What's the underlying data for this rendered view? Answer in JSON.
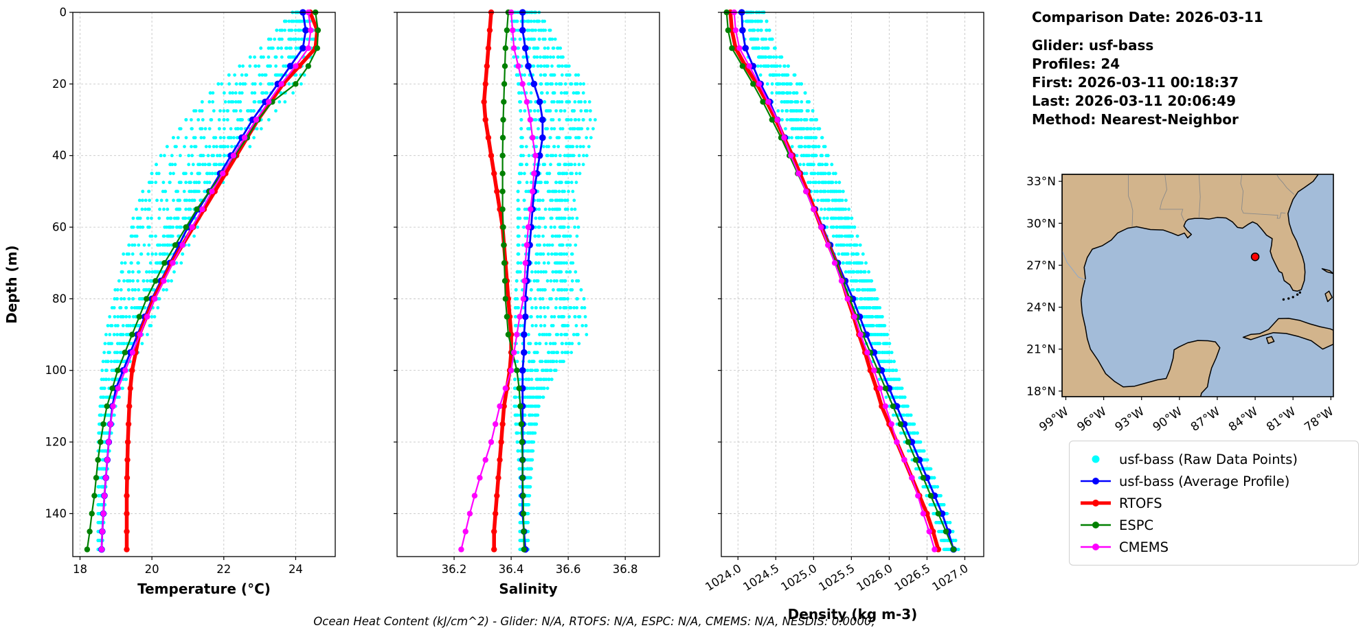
{
  "caption": "Ocean Heat Content (kJ/cm^2) - Glider: N/A,  RTOFS: N/A,  ESPC: N/A,  CMEMS: N/A,  NESDIS: 0.0000,",
  "info_panel": {
    "title": "Comparison Date: 2026-03-11",
    "lines": [
      "Glider: usf-bass",
      "Profiles: 24",
      "First: 2026-03-11 00:18:37",
      "Last: 2026-03-11 20:06:49",
      "Method: Nearest-Neighbor"
    ]
  },
  "legend": {
    "items": [
      {
        "label": "usf-bass (Raw Data Points)",
        "color": "#00FFFF",
        "style": "dot"
      },
      {
        "label": "usf-bass (Average Profile)",
        "color": "#0000FF",
        "style": "line-dot"
      },
      {
        "label": "RTOFS",
        "color": "#FF0000",
        "style": "thick-line-dot"
      },
      {
        "label": "ESPC",
        "color": "#008000",
        "style": "line-dot"
      },
      {
        "label": "CMEMS",
        "color": "#FF00FF",
        "style": "line-dot"
      }
    ]
  },
  "chart_data": [
    {
      "id": "temperature",
      "type": "scatter",
      "xlabel": "Temperature (°C)",
      "ylabel": "Depth (m)",
      "xlim": [
        17.8,
        25.1
      ],
      "xticks": [
        18,
        20,
        22,
        24
      ],
      "xtick_labels": [
        "18",
        "20",
        "22",
        "24"
      ],
      "rotate_xticks": false,
      "ylim": [
        0,
        152
      ],
      "yticks": [
        0,
        20,
        40,
        60,
        80,
        100,
        120,
        140
      ],
      "depths": [
        0,
        5,
        10,
        15,
        20,
        25,
        30,
        35,
        40,
        45,
        50,
        55,
        60,
        65,
        70,
        75,
        80,
        85,
        90,
        95,
        100,
        105,
        110,
        115,
        120,
        125,
        130,
        135,
        140,
        145,
        150
      ],
      "series": [
        {
          "key": "avg",
          "name": "usf-bass (Average Profile)",
          "color": "#0000FF",
          "width": 2.8,
          "marker": 4.8,
          "values": [
            24.2,
            24.28,
            24.2,
            23.85,
            23.5,
            23.15,
            22.8,
            22.5,
            22.2,
            21.9,
            21.6,
            21.3,
            21.0,
            20.75,
            20.5,
            20.25,
            20.0,
            19.8,
            19.6,
            19.4,
            19.2,
            19.0,
            18.9,
            18.85,
            18.8,
            18.76,
            18.72,
            18.68,
            18.65,
            18.62,
            18.6
          ]
        },
        {
          "key": "rtofs",
          "name": "RTOFS",
          "color": "#FF0000",
          "width": 5.5,
          "marker": 4.2,
          "values": [
            24.4,
            24.6,
            24.55,
            24.1,
            23.65,
            23.3,
            22.95,
            22.65,
            22.35,
            22.05,
            21.75,
            21.45,
            21.15,
            20.85,
            20.55,
            20.3,
            20.05,
            19.85,
            19.65,
            19.55,
            19.45,
            19.4,
            19.37,
            19.35,
            19.33,
            19.32,
            19.31,
            19.3,
            19.3,
            19.3,
            19.3
          ]
        },
        {
          "key": "espc",
          "name": "ESPC",
          "color": "#008000",
          "width": 2.2,
          "marker": 4.2,
          "values": [
            24.55,
            24.62,
            24.6,
            24.35,
            24.0,
            23.35,
            22.95,
            22.65,
            22.3,
            21.95,
            21.6,
            21.25,
            20.95,
            20.65,
            20.35,
            20.1,
            19.85,
            19.65,
            19.45,
            19.25,
            19.05,
            18.9,
            18.75,
            18.65,
            18.57,
            18.5,
            18.45,
            18.4,
            18.33,
            18.27,
            18.2
          ]
        },
        {
          "key": "cmems",
          "name": "CMEMS",
          "color": "#FF00FF",
          "width": 2.2,
          "marker": 4.2,
          "values": [
            24.35,
            24.42,
            24.35,
            24.0,
            23.6,
            23.25,
            22.9,
            22.58,
            22.27,
            21.97,
            21.67,
            21.4,
            21.12,
            20.85,
            20.58,
            20.33,
            20.08,
            19.87,
            19.67,
            19.46,
            19.26,
            19.06,
            18.92,
            18.85,
            18.8,
            18.76,
            18.72,
            18.68,
            18.65,
            18.62,
            18.6
          ]
        }
      ],
      "raw": {
        "name": "usf-bass (Raw Data Points)",
        "color": "#00FFFF",
        "profiles": 24,
        "envelope": [
          [
            0,
            23.9,
            24.5
          ],
          [
            10,
            23.0,
            24.55
          ],
          [
            20,
            21.8,
            24.2
          ],
          [
            30,
            20.9,
            23.3
          ],
          [
            40,
            20.2,
            22.6
          ],
          [
            50,
            19.7,
            22.0
          ],
          [
            60,
            19.35,
            21.4
          ],
          [
            70,
            19.1,
            20.85
          ],
          [
            80,
            18.9,
            20.3
          ],
          [
            90,
            18.7,
            19.9
          ],
          [
            100,
            18.6,
            19.4
          ],
          [
            110,
            18.55,
            19.0
          ],
          [
            120,
            18.5,
            18.85
          ],
          [
            130,
            18.5,
            18.75
          ],
          [
            140,
            18.5,
            18.68
          ],
          [
            150,
            18.5,
            18.62
          ]
        ]
      }
    },
    {
      "id": "salinity",
      "type": "scatter",
      "xlabel": "Salinity",
      "xlim": [
        36.0,
        36.92
      ],
      "xticks": [
        36.2,
        36.4,
        36.6,
        36.8
      ],
      "xtick_labels": [
        "36.2",
        "36.4",
        "36.6",
        "36.8"
      ],
      "rotate_xticks": false,
      "ylim": [
        0,
        152
      ],
      "yticks": [
        0,
        20,
        40,
        60,
        80,
        100,
        120,
        140
      ],
      "depths": [
        0,
        5,
        10,
        15,
        20,
        25,
        30,
        35,
        40,
        45,
        50,
        55,
        60,
        65,
        70,
        75,
        80,
        85,
        90,
        95,
        100,
        105,
        110,
        115,
        120,
        125,
        130,
        135,
        140,
        145,
        150
      ],
      "series": [
        {
          "key": "avg",
          "name": "usf-bass (Average Profile)",
          "color": "#0000FF",
          "width": 2.8,
          "marker": 4.8,
          "values": [
            36.44,
            36.44,
            36.45,
            36.46,
            36.48,
            36.5,
            36.51,
            36.51,
            36.5,
            36.49,
            36.48,
            36.475,
            36.47,
            36.465,
            36.46,
            36.455,
            36.45,
            36.45,
            36.445,
            36.445,
            36.44,
            36.44,
            36.44,
            36.44,
            36.44,
            36.44,
            36.44,
            36.44,
            36.44,
            36.445,
            36.45
          ]
        },
        {
          "key": "rtofs",
          "name": "RTOFS",
          "color": "#FF0000",
          "width": 5.5,
          "marker": 4.2,
          "values": [
            36.33,
            36.325,
            36.32,
            36.315,
            36.31,
            36.305,
            36.31,
            36.32,
            36.33,
            36.34,
            36.35,
            36.36,
            36.37,
            36.375,
            36.38,
            36.385,
            36.39,
            36.395,
            36.4,
            36.4,
            36.395,
            36.385,
            36.375,
            36.37,
            36.365,
            36.36,
            36.355,
            36.35,
            36.345,
            36.34,
            36.34
          ]
        },
        {
          "key": "espc",
          "name": "ESPC",
          "color": "#008000",
          "width": 2.2,
          "marker": 4.2,
          "values": [
            36.39,
            36.385,
            36.38,
            36.378,
            36.376,
            36.374,
            36.372,
            36.371,
            36.37,
            36.37,
            36.37,
            36.37,
            36.372,
            36.374,
            36.376,
            36.378,
            36.38,
            36.385,
            36.39,
            36.405,
            36.42,
            36.428,
            36.432,
            36.436,
            36.438,
            36.44,
            36.44,
            36.442,
            36.443,
            36.444,
            36.445
          ]
        },
        {
          "key": "cmems",
          "name": "CMEMS",
          "color": "#FF00FF",
          "width": 2.2,
          "marker": 4.2,
          "values": [
            36.4,
            36.405,
            36.41,
            36.425,
            36.44,
            36.455,
            36.467,
            36.475,
            36.485,
            36.48,
            36.475,
            36.468,
            36.46,
            36.455,
            36.45,
            36.447,
            36.443,
            36.43,
            36.42,
            36.41,
            36.4,
            36.38,
            36.36,
            36.345,
            36.33,
            36.31,
            36.29,
            36.272,
            36.255,
            36.24,
            36.225
          ]
        }
      ],
      "raw": {
        "name": "usf-bass (Raw Data Points)",
        "color": "#00FFFF",
        "profiles": 24,
        "envelope": [
          [
            0,
            36.4,
            36.5
          ],
          [
            10,
            36.4,
            36.58
          ],
          [
            20,
            36.42,
            36.66
          ],
          [
            30,
            36.43,
            36.7
          ],
          [
            40,
            36.43,
            36.67
          ],
          [
            50,
            36.42,
            36.62
          ],
          [
            60,
            36.42,
            36.64
          ],
          [
            70,
            36.42,
            36.62
          ],
          [
            80,
            36.41,
            36.66
          ],
          [
            90,
            36.41,
            36.67
          ],
          [
            100,
            36.41,
            36.56
          ],
          [
            110,
            36.41,
            36.5
          ],
          [
            120,
            36.42,
            36.48
          ],
          [
            130,
            36.43,
            36.47
          ],
          [
            140,
            36.43,
            36.46
          ],
          [
            150,
            36.43,
            36.46
          ]
        ]
      }
    },
    {
      "id": "density",
      "type": "scatter",
      "xlabel": "Density (kg m-3)",
      "xlim": [
        1023.78,
        1027.25
      ],
      "xticks": [
        1024.0,
        1024.5,
        1025.0,
        1025.5,
        1026.0,
        1026.5,
        1027.0
      ],
      "xtick_labels": [
        "1024.0",
        "1024.5",
        "1025.0",
        "1025.5",
        "1026.0",
        "1026.5",
        "1027.0"
      ],
      "rotate_xticks": true,
      "ylim": [
        0,
        152
      ],
      "yticks": [
        0,
        20,
        40,
        60,
        80,
        100,
        120,
        140
      ],
      "depths": [
        0,
        5,
        10,
        15,
        20,
        25,
        30,
        35,
        40,
        45,
        50,
        55,
        60,
        65,
        70,
        75,
        80,
        85,
        90,
        95,
        100,
        105,
        110,
        115,
        120,
        125,
        130,
        135,
        140,
        145,
        150
      ],
      "series": [
        {
          "key": "avg",
          "name": "usf-bass (Average Profile)",
          "color": "#0000FF",
          "width": 2.8,
          "marker": 4.8,
          "values": [
            1024.05,
            1024.06,
            1024.1,
            1024.2,
            1024.3,
            1024.42,
            1024.52,
            1024.62,
            1024.72,
            1024.82,
            1024.92,
            1025.02,
            1025.12,
            1025.22,
            1025.32,
            1025.42,
            1025.52,
            1025.61,
            1025.7,
            1025.8,
            1025.9,
            1026.0,
            1026.1,
            1026.2,
            1026.3,
            1026.4,
            1026.5,
            1026.6,
            1026.7,
            1026.78,
            1026.85
          ]
        },
        {
          "key": "rtofs",
          "name": "RTOFS",
          "color": "#FF0000",
          "width": 5.5,
          "marker": 4.2,
          "values": [
            1023.9,
            1023.92,
            1023.97,
            1024.1,
            1024.25,
            1024.38,
            1024.5,
            1024.61,
            1024.72,
            1024.82,
            1024.92,
            1025.01,
            1025.1,
            1025.2,
            1025.3,
            1025.38,
            1025.45,
            1025.53,
            1025.6,
            1025.68,
            1025.75,
            1025.83,
            1025.9,
            1026.0,
            1026.1,
            1026.2,
            1026.3,
            1026.4,
            1026.5,
            1026.58,
            1026.65
          ]
        },
        {
          "key": "espc",
          "name": "ESPC",
          "color": "#008000",
          "width": 2.2,
          "marker": 4.2,
          "values": [
            1023.85,
            1023.87,
            1023.92,
            1024.06,
            1024.2,
            1024.33,
            1024.45,
            1024.57,
            1024.68,
            1024.79,
            1024.9,
            1025.0,
            1025.1,
            1025.2,
            1025.3,
            1025.39,
            1025.48,
            1025.57,
            1025.65,
            1025.75,
            1025.85,
            1025.95,
            1026.05,
            1026.15,
            1026.25,
            1026.35,
            1026.45,
            1026.55,
            1026.65,
            1026.75,
            1026.85
          ]
        },
        {
          "key": "cmems",
          "name": "CMEMS",
          "color": "#FF00FF",
          "width": 2.2,
          "marker": 4.2,
          "values": [
            1023.95,
            1023.97,
            1024.02,
            1024.15,
            1024.28,
            1024.4,
            1024.52,
            1024.61,
            1024.7,
            1024.8,
            1024.9,
            1025.0,
            1025.1,
            1025.19,
            1025.28,
            1025.37,
            1025.45,
            1025.54,
            1025.62,
            1025.71,
            1025.8,
            1025.88,
            1025.95,
            1026.03,
            1026.1,
            1026.2,
            1026.3,
            1026.38,
            1026.45,
            1026.53,
            1026.6
          ]
        }
      ],
      "raw": {
        "name": "usf-bass (Raw Data Points)",
        "color": "#00FFFF",
        "profiles": 24,
        "envelope": [
          [
            0,
            1024.0,
            1024.35
          ],
          [
            10,
            1024.05,
            1024.5
          ],
          [
            20,
            1024.3,
            1024.85
          ],
          [
            30,
            1024.5,
            1025.05
          ],
          [
            40,
            1024.72,
            1025.2
          ],
          [
            50,
            1024.92,
            1025.4
          ],
          [
            60,
            1025.12,
            1025.55
          ],
          [
            70,
            1025.3,
            1025.7
          ],
          [
            80,
            1025.5,
            1025.85
          ],
          [
            90,
            1025.65,
            1025.98
          ],
          [
            100,
            1025.82,
            1026.1
          ],
          [
            110,
            1026.0,
            1026.25
          ],
          [
            120,
            1026.2,
            1026.42
          ],
          [
            130,
            1026.4,
            1026.6
          ],
          [
            140,
            1026.58,
            1026.77
          ],
          [
            150,
            1026.72,
            1026.92
          ]
        ]
      }
    }
  ],
  "map": {
    "extent": {
      "lon_min": -99.3,
      "lon_max": -77.8,
      "lat_min": 17.6,
      "lat_max": 33.5
    },
    "lat_ticks": [
      {
        "value": 33,
        "label": "33°N"
      },
      {
        "value": 30,
        "label": "30°N"
      },
      {
        "value": 27,
        "label": "27°N"
      },
      {
        "value": 24,
        "label": "24°N"
      },
      {
        "value": 21,
        "label": "21°N"
      },
      {
        "value": 18,
        "label": "18°N"
      }
    ],
    "lon_ticks": [
      {
        "value": -99,
        "label": "99°W"
      },
      {
        "value": -96,
        "label": "96°W"
      },
      {
        "value": -93,
        "label": "93°W"
      },
      {
        "value": -90,
        "label": "90°W"
      },
      {
        "value": -87,
        "label": "87°W"
      },
      {
        "value": -84,
        "label": "84°W"
      },
      {
        "value": -81,
        "label": "81°W"
      },
      {
        "value": -78,
        "label": "78°W"
      }
    ],
    "glider_marker": {
      "lon": -84.0,
      "lat": 27.6,
      "color": "#FF0000"
    },
    "land_color": "#d2b48c",
    "water_color": "#a3bcd9"
  }
}
